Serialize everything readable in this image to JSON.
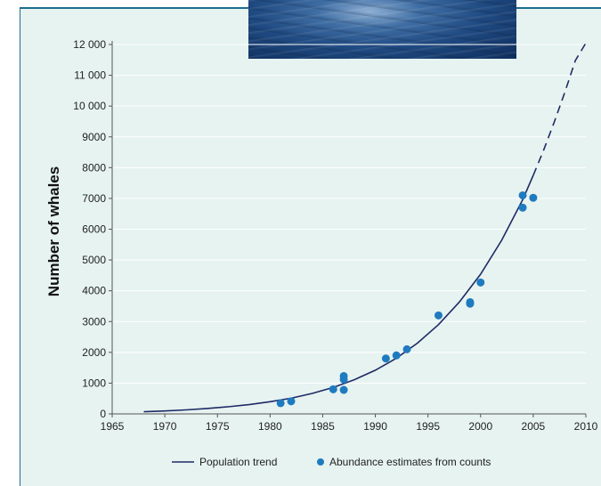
{
  "chart_data": {
    "type": "scatter",
    "title": "",
    "xlabel": "",
    "ylabel": "Number of whales",
    "xlim": [
      1965,
      2010
    ],
    "ylim": [
      0,
      12000
    ],
    "x_ticks": [
      "1965",
      "1970",
      "1975",
      "1980",
      "1985",
      "1990",
      "1995",
      "2000",
      "2005",
      "2010"
    ],
    "y_ticks": [
      "0",
      "1000",
      "2000",
      "3000",
      "4000",
      "5000",
      "6000",
      "7000",
      "8000",
      "9000",
      "10 000",
      "11 000",
      "12 000"
    ],
    "grid": true,
    "legend_position": "bottom",
    "series": [
      {
        "name": "Population trend",
        "kind": "line",
        "color": "#1f2a66",
        "x": [
          1968,
          1970,
          1972,
          1974,
          1976,
          1978,
          1980,
          1982,
          1984,
          1986,
          1988,
          1990,
          1992,
          1994,
          1996,
          1998,
          2000,
          2002,
          2004,
          2005
        ],
        "y": [
          70,
          95,
          130,
          175,
          230,
          300,
          395,
          510,
          665,
          860,
          1110,
          1420,
          1810,
          2300,
          2900,
          3640,
          4540,
          5640,
          6960,
          7750
        ]
      },
      {
        "name": "",
        "kind": "line-dashed",
        "color": "#1f2a66",
        "x": [
          2005,
          2006,
          2007,
          2008,
          2009,
          2010
        ],
        "y": [
          7750,
          8580,
          9480,
          10450,
          11480,
          12050
        ]
      },
      {
        "name": "Abundance estimates from counts",
        "kind": "points",
        "color": "#1f7bc0",
        "x": [
          1981,
          1982,
          1986,
          1987,
          1987,
          1987,
          1991,
          1992,
          1993,
          1996,
          1999,
          1999,
          2000,
          2004,
          2004,
          2005
        ],
        "y": [
          350,
          410,
          800,
          780,
          1120,
          1230,
          1800,
          1900,
          2100,
          3200,
          3580,
          3630,
          4270,
          7100,
          6700,
          7020
        ]
      }
    ]
  }
}
